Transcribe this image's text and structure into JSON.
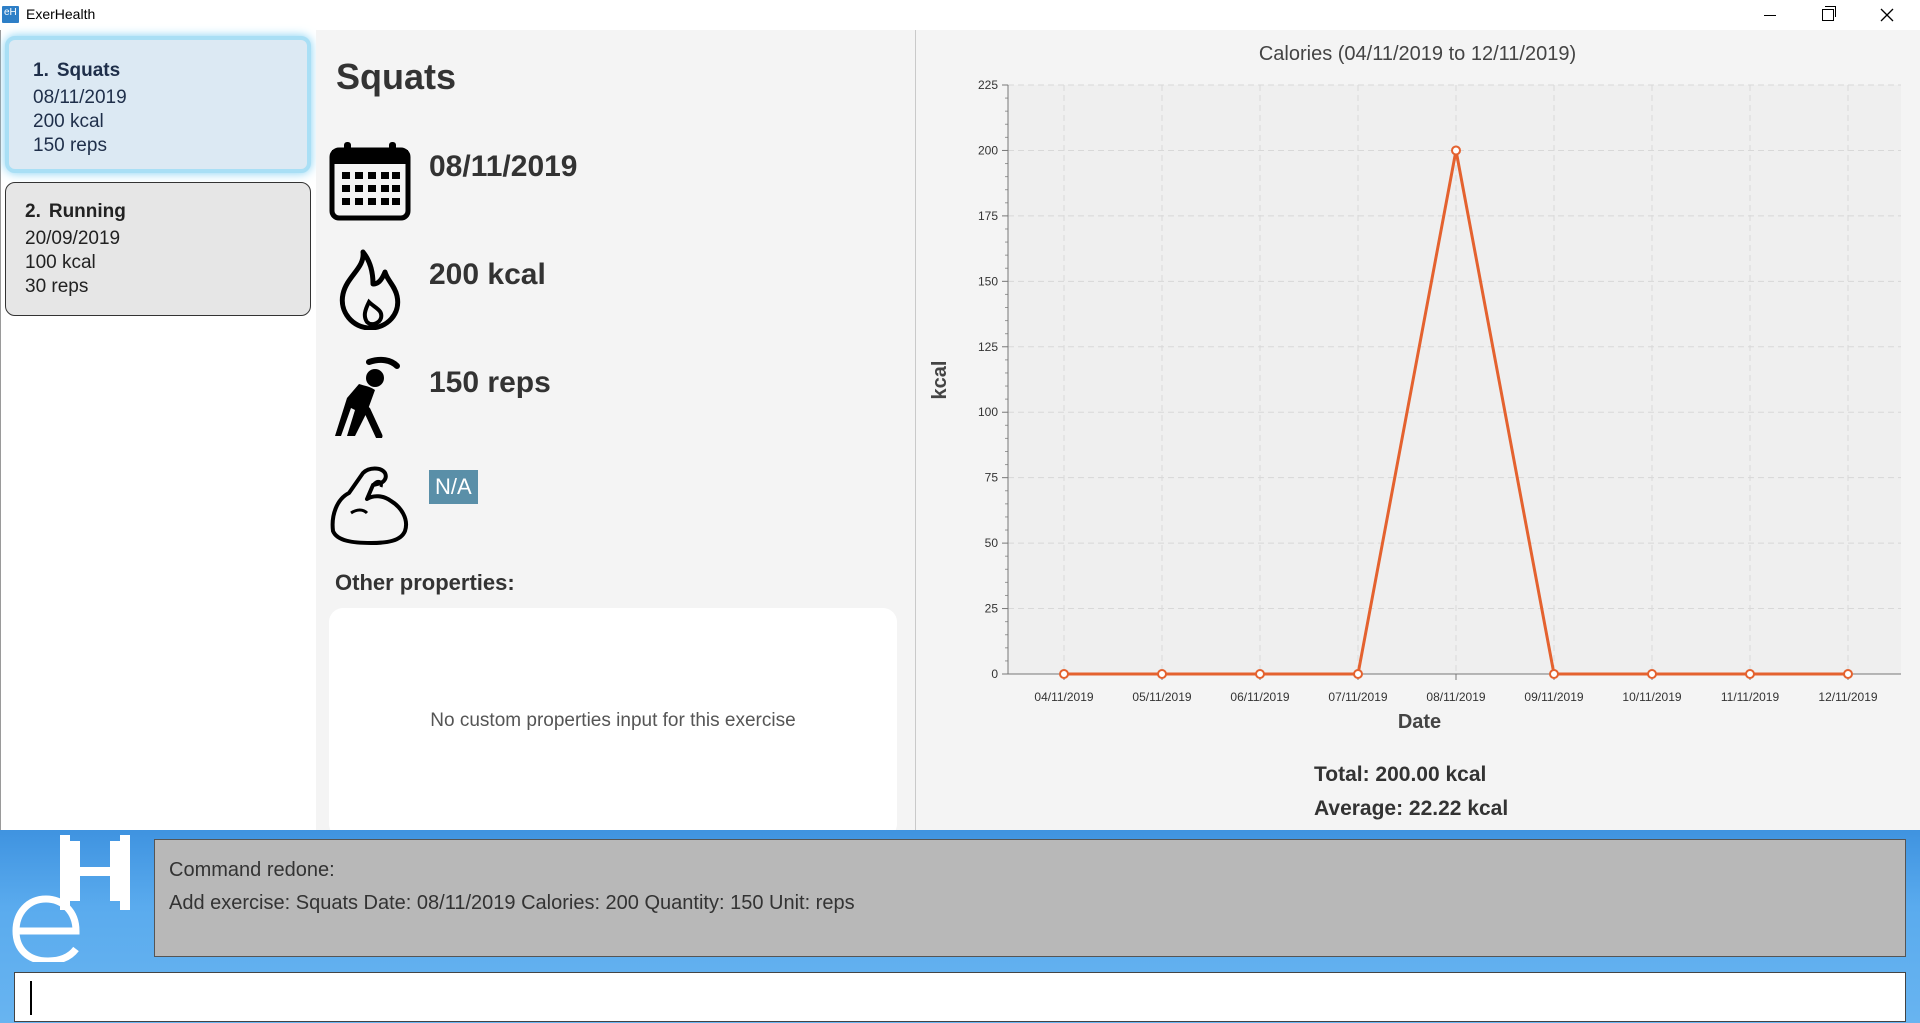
{
  "window": {
    "title": "ExerHealth"
  },
  "exercise_list": [
    {
      "index": "1.",
      "name": "Squats",
      "date": "08/11/2019",
      "calories": "200 kcal",
      "quantity": "150 reps"
    },
    {
      "index": "2.",
      "name": "Running",
      "date": "20/09/2019",
      "calories": "100 kcal",
      "quantity": "30 reps"
    }
  ],
  "detail": {
    "name": "Squats",
    "date": "08/11/2019",
    "calories": "200 kcal",
    "quantity": "150 reps",
    "muscle": "N/A",
    "other_label": "Other properties:",
    "empty_props": "No custom properties input for this exercise"
  },
  "chart_data": {
    "type": "line",
    "title": "Calories (04/11/2019 to 12/11/2019)",
    "xlabel": "Date",
    "ylabel": "kcal",
    "ylim": [
      0,
      225
    ],
    "yticks": [
      0,
      25,
      50,
      75,
      100,
      125,
      150,
      175,
      200,
      225
    ],
    "categories": [
      "04/11/2019",
      "05/11/2019",
      "06/11/2019",
      "07/11/2019",
      "08/11/2019",
      "09/11/2019",
      "10/11/2019",
      "11/11/2019",
      "12/11/2019"
    ],
    "series": [
      {
        "name": "Calories",
        "values": [
          0,
          0,
          0,
          0,
          200,
          0,
          0,
          0,
          0
        ]
      }
    ],
    "grid": true,
    "line_color": "#e4622f"
  },
  "stats": {
    "total": "Total: 200.00 kcal",
    "average": "Average: 22.22 kcal"
  },
  "result": {
    "line1": "Command redone:",
    "line2": "Add exercise: Squats Date: 08/11/2019 Calories: 200 Quantity: 150 Unit: reps"
  },
  "command": {
    "value": ""
  }
}
